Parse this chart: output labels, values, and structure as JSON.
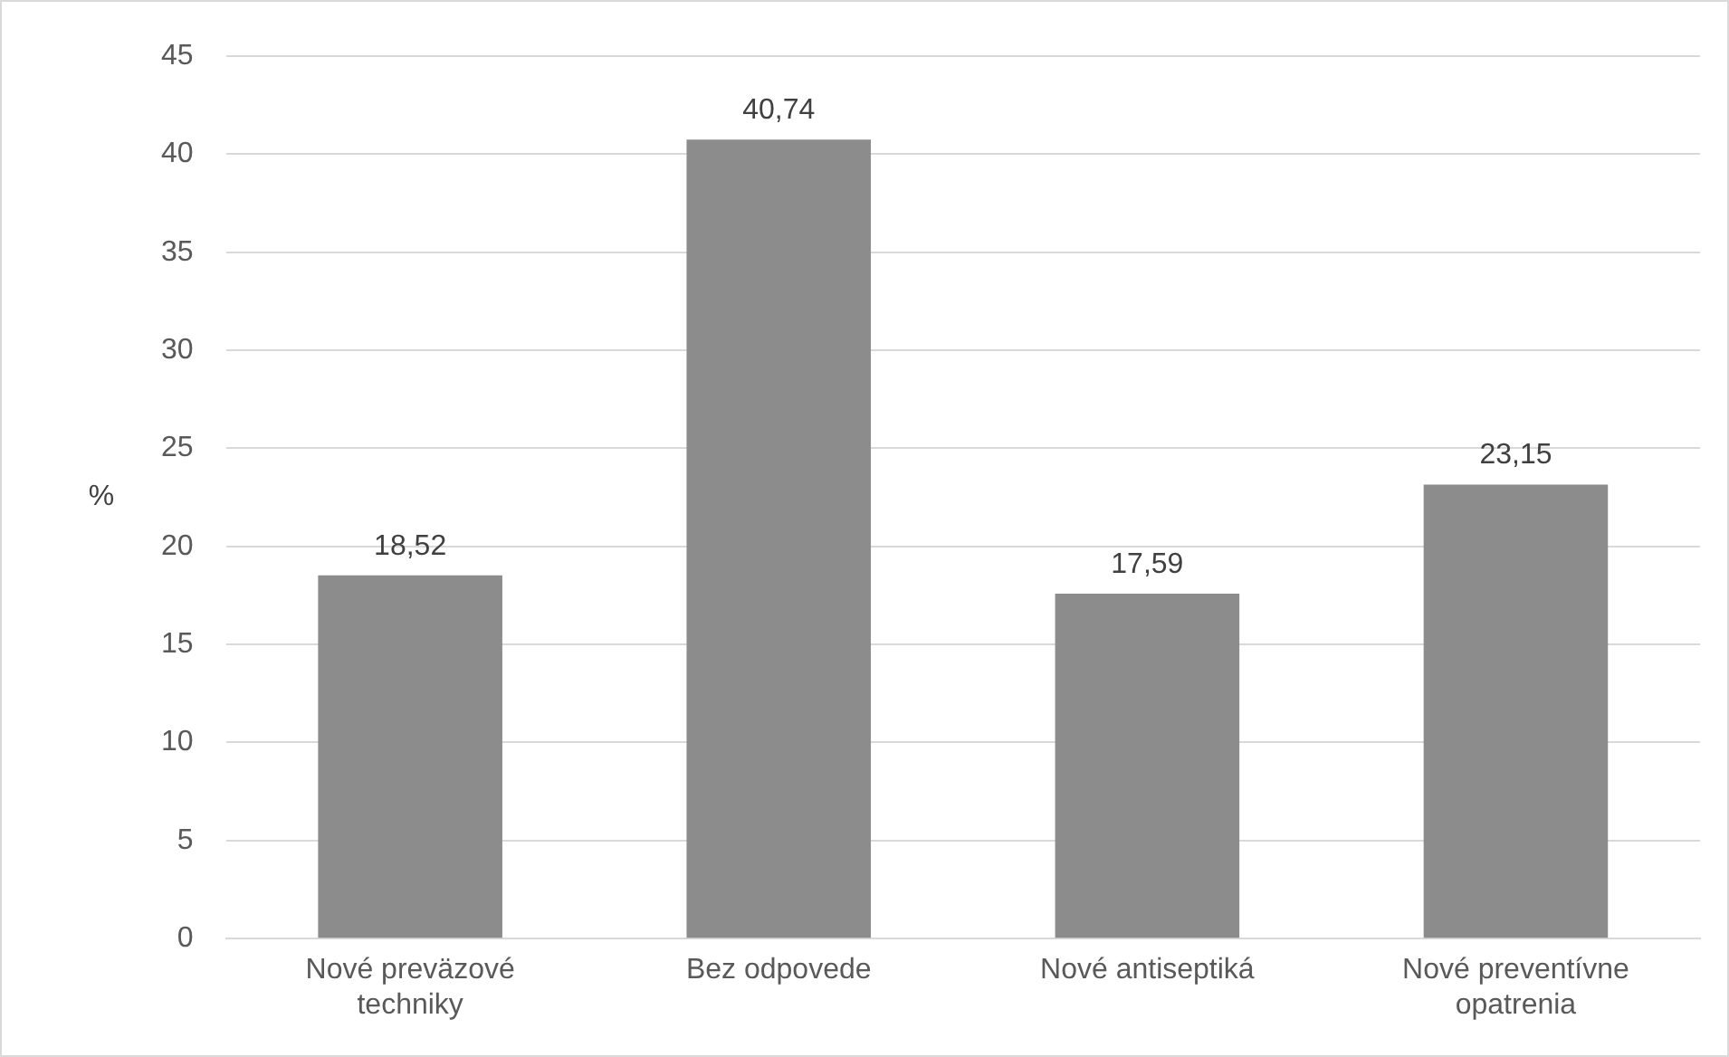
{
  "chart_data": {
    "type": "bar",
    "ylabel": "%",
    "categories": [
      "Nové preväzové techniky",
      "Bez odpovede",
      "Nové antiseptiká",
      "Nové preventívne opatrenia"
    ],
    "values": [
      18.52,
      40.74,
      17.59,
      23.15
    ],
    "value_labels": [
      "18,52",
      "40,74",
      "17,59",
      "23,15"
    ],
    "color": "#8c8c8c",
    "ylim": [
      0,
      45
    ],
    "yticks": [
      0,
      5,
      10,
      15,
      20,
      25,
      30,
      35,
      40,
      45
    ],
    "grid": "y",
    "legend": false
  }
}
